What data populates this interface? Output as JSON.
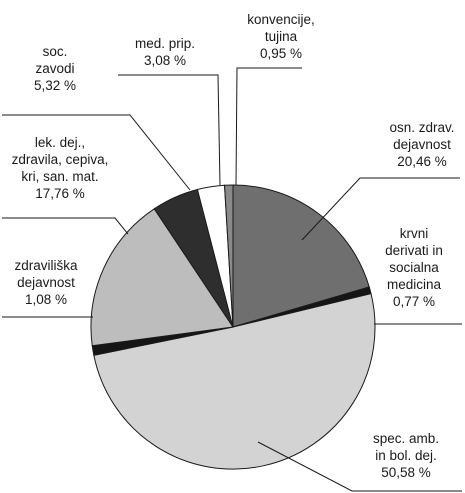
{
  "chart_data": {
    "type": "pie",
    "slices": [
      {
        "label": [
          "osn. zdrav.",
          "dejavnost"
        ],
        "value_label": "20,46 %",
        "value": 20.46,
        "color": "#6f6f6f"
      },
      {
        "label": [
          "krvni",
          "derivati in",
          "socialna",
          "medicina"
        ],
        "value_label": "0,77 %",
        "value": 0.77,
        "color": "#151515"
      },
      {
        "label": [
          "spec. amb.",
          "in bol. dej."
        ],
        "value_label": "50,58 %",
        "value": 50.58,
        "color": "#d3d3d3"
      },
      {
        "label": [
          "zdraviliška",
          "dejavnost"
        ],
        "value_label": "1,08 %",
        "value": 1.08,
        "color": "#151515"
      },
      {
        "label": [
          "lek. dej.,",
          "zdravila, cepiva,",
          "kri, san. mat."
        ],
        "value_label": "17,76 %",
        "value": 17.76,
        "color": "#bdbdbd"
      },
      {
        "label": [
          "soc.",
          "zavodi"
        ],
        "value_label": "5,32 %",
        "value": 5.32,
        "color": "#2e2e2e"
      },
      {
        "label": [
          "med. prip."
        ],
        "value_label": "3,08 %",
        "value": 3.08,
        "color": "#ffffff"
      },
      {
        "label": [
          "konvencije,",
          "tujina"
        ],
        "value_label": "0,95 %",
        "value": 0.95,
        "color": "#8a8a8a"
      }
    ]
  }
}
